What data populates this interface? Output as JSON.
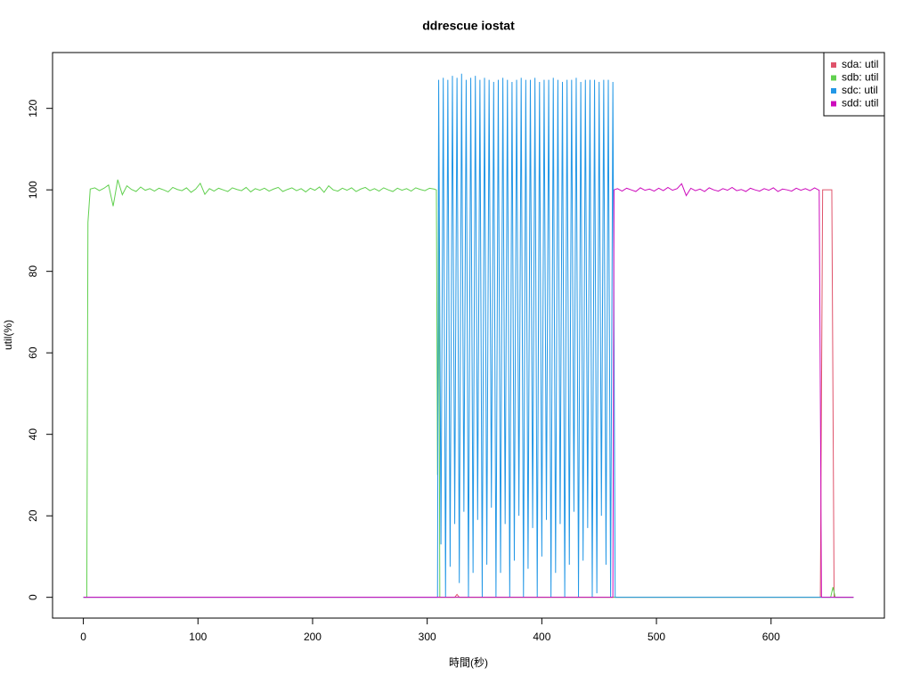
{
  "chart_data": {
    "type": "line",
    "title": "ddrescue iostat",
    "x_label": "時間(秒)",
    "y_label": "util(%)",
    "xlim": [
      -26.88,
      698.88
    ],
    "ylim": [
      -5.1,
      133.7
    ],
    "xticks": [
      0,
      100,
      200,
      300,
      400,
      500,
      600
    ],
    "yticks": [
      0,
      20,
      40,
      60,
      80,
      100,
      120
    ],
    "grid": false,
    "legend": "topright",
    "series": [
      {
        "name": "sda: util",
        "color": "#DF536B",
        "x": [
          0,
          324,
          326,
          328,
          643,
          645,
          653,
          655,
          672
        ],
        "values": [
          0,
          0,
          0.7,
          0,
          0,
          100,
          100,
          0,
          0
        ]
      },
      {
        "name": "sdb: util",
        "color": "#61D04F",
        "x": [
          0,
          3,
          4,
          6,
          10,
          14,
          18,
          22,
          26,
          30,
          34,
          38,
          42,
          46,
          50,
          54,
          58,
          62,
          66,
          70,
          74,
          78,
          82,
          86,
          90,
          94,
          98,
          102,
          106,
          110,
          114,
          118,
          122,
          126,
          130,
          134,
          138,
          142,
          146,
          150,
          154,
          158,
          162,
          166,
          170,
          174,
          178,
          182,
          186,
          190,
          194,
          198,
          202,
          206,
          210,
          214,
          218,
          222,
          226,
          230,
          234,
          238,
          242,
          246,
          250,
          254,
          258,
          262,
          266,
          270,
          274,
          278,
          282,
          286,
          290,
          294,
          298,
          302,
          306,
          308,
          309,
          310,
          311,
          652,
          654,
          656,
          672
        ],
        "values": [
          0,
          0,
          92,
          100.2,
          100.5,
          99.8,
          100.4,
          101.2,
          96,
          102.5,
          98.8,
          101,
          100.1,
          99.6,
          100.7,
          99.9,
          100.3,
          99.7,
          100.4,
          100,
          99.5,
          100.6,
          100.1,
          99.8,
          100.5,
          99.4,
          100.2,
          101.6,
          98.9,
          100.3,
          99.7,
          100.4,
          100,
          99.6,
          100.5,
          100.1,
          99.8,
          100.6,
          99.5,
          100.3,
          99.9,
          100.4,
          99.7,
          100.2,
          100.6,
          99.6,
          100.1,
          100.5,
          99.8,
          100.3,
          99.5,
          100.4,
          99.9,
          100.7,
          99.4,
          101,
          100,
          99.7,
          100.4,
          99.9,
          100.5,
          99.6,
          100.2,
          100.6,
          99.8,
          100.3,
          99.7,
          100.5,
          100,
          99.6,
          100.4,
          99.9,
          100.3,
          99.7,
          100.5,
          100.1,
          99.8,
          100.4,
          100.2,
          100,
          30,
          95,
          0,
          0,
          2.5,
          0,
          0
        ]
      },
      {
        "name": "sdc: util",
        "color": "#2297E6",
        "x": [
          0,
          309,
          310,
          312,
          314,
          316,
          318,
          320,
          322,
          324,
          326,
          328,
          330,
          332,
          334,
          336,
          338,
          340,
          342,
          344,
          346,
          348,
          350,
          352,
          354,
          356,
          358,
          360,
          362,
          364,
          366,
          368,
          370,
          372,
          374,
          376,
          378,
          380,
          382,
          384,
          386,
          388,
          390,
          392,
          394,
          396,
          398,
          400,
          402,
          404,
          406,
          408,
          410,
          412,
          414,
          416,
          418,
          420,
          422,
          424,
          426,
          428,
          430,
          432,
          434,
          436,
          438,
          440,
          442,
          444,
          446,
          448,
          450,
          452,
          454,
          456,
          458,
          460,
          462,
          464,
          672
        ],
        "values": [
          0,
          0,
          127,
          13,
          127.5,
          0,
          127,
          7.5,
          128,
          18,
          127.5,
          3.5,
          128.5,
          21,
          127,
          0,
          127.5,
          6,
          128,
          19,
          127,
          0,
          127.5,
          8,
          127,
          22,
          126.5,
          0,
          127,
          6,
          127.5,
          18,
          127,
          0,
          126.5,
          9,
          127,
          20,
          127.5,
          0,
          127,
          7,
          127,
          17,
          127.5,
          0,
          126.5,
          10,
          127,
          19,
          127,
          0,
          127.5,
          6,
          127,
          18,
          126.5,
          0,
          127,
          8,
          127,
          21,
          127.5,
          0,
          126.5,
          9,
          127,
          17,
          127,
          0,
          127,
          1,
          126.5,
          20,
          127,
          8,
          127,
          0,
          126.5,
          0,
          0
        ]
      },
      {
        "name": "sdd: util",
        "color": "#CD0BBC",
        "x": [
          0,
          462,
          463,
          466,
          470,
          474,
          478,
          482,
          486,
          490,
          494,
          498,
          502,
          506,
          510,
          514,
          518,
          522,
          526,
          530,
          534,
          538,
          542,
          546,
          550,
          554,
          558,
          562,
          566,
          570,
          574,
          578,
          582,
          586,
          590,
          594,
          598,
          602,
          606,
          610,
          614,
          618,
          622,
          626,
          630,
          634,
          638,
          642,
          644,
          672
        ],
        "values": [
          0,
          0,
          100,
          100.3,
          99.7,
          100.4,
          100,
          99.6,
          100.5,
          99.9,
          100.2,
          99.7,
          100.4,
          99.8,
          100.6,
          99.9,
          100.3,
          101.5,
          98.6,
          100.4,
          99.8,
          100.2,
          99.6,
          100.5,
          100,
          99.7,
          100.3,
          99.9,
          100.6,
          99.8,
          100.1,
          99.6,
          100.4,
          100,
          99.7,
          100.3,
          99.9,
          100.5,
          99.6,
          100.2,
          100,
          99.7,
          100.4,
          99.9,
          100.3,
          99.8,
          100.5,
          99.9,
          0,
          0
        ]
      }
    ]
  }
}
